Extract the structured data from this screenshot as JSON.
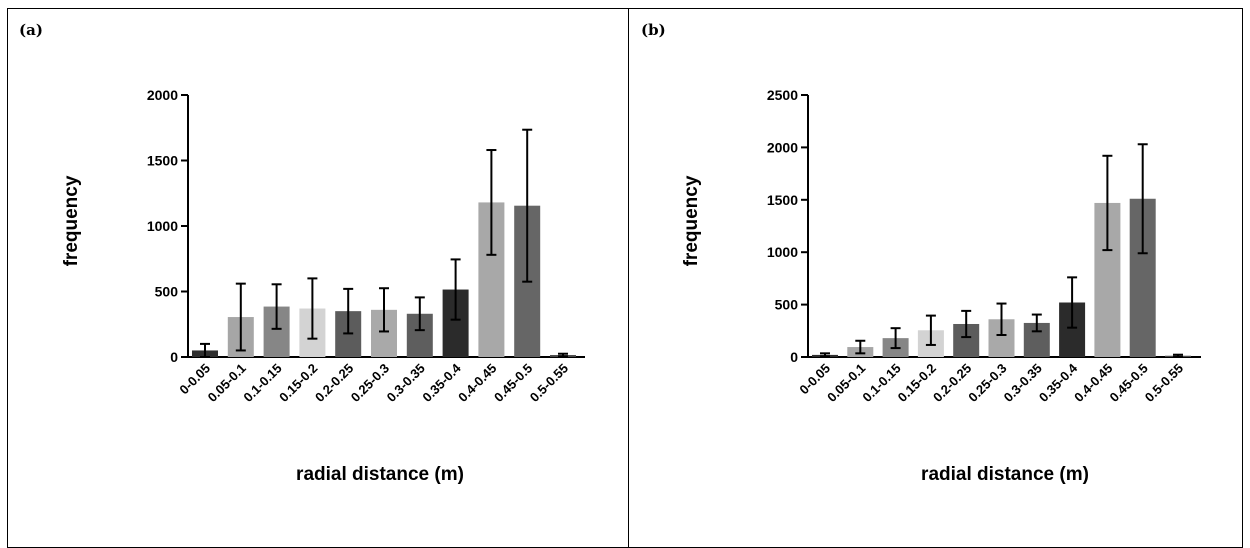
{
  "chart_data": [
    {
      "type": "bar",
      "panel_label": "(a)",
      "xlabel": "radial distance (m)",
      "ylabel": "frequency",
      "ylim": [
        0,
        2000
      ],
      "yticks": [
        "0",
        "500",
        "1000",
        "1500",
        "2000"
      ],
      "categories": [
        "0-0.05",
        "0.05-0.1",
        "0.1-0.15",
        "0.15-0.2",
        "0.2-0.25",
        "0.25-0.3",
        "0.3-0.35",
        "0.35-0.4",
        "0.4-0.45",
        "0.45-0.5",
        "0.5-0.55"
      ],
      "values": [
        50,
        305,
        385,
        370,
        350,
        360,
        330,
        515,
        1180,
        1155,
        15
      ],
      "error": [
        50,
        255,
        170,
        230,
        170,
        165,
        125,
        230,
        400,
        580,
        10
      ],
      "bar_colors": [
        "#2f2f2f",
        "#a6a6a6",
        "#868686",
        "#d3d3d3",
        "#5c5c5c",
        "#a9a9a9",
        "#5e5e5e",
        "#2b2b2b",
        "#a8a8a8",
        "#666666",
        "#4a4a4a"
      ]
    },
    {
      "type": "bar",
      "panel_label": "(b)",
      "xlabel": "radial distance (m)",
      "ylabel": "frequency",
      "ylim": [
        0,
        2500
      ],
      "yticks": [
        "0",
        "500",
        "1000",
        "1500",
        "2000",
        "2500"
      ],
      "categories": [
        "0-0.05",
        "0.05-0.1",
        "0.1-0.15",
        "0.15-0.2",
        "0.2-0.25",
        "0.25-0.3",
        "0.3-0.35",
        "0.35-0.4",
        "0.4-0.45",
        "0.45-0.5",
        "0.5-0.55"
      ],
      "values": [
        20,
        95,
        180,
        255,
        315,
        360,
        325,
        520,
        1470,
        1510,
        12
      ],
      "error": [
        15,
        60,
        95,
        140,
        125,
        150,
        80,
        240,
        450,
        520,
        10
      ],
      "bar_colors": [
        "#2f2f2f",
        "#a6a6a6",
        "#868686",
        "#d3d3d3",
        "#5c5c5c",
        "#a9a9a9",
        "#5e5e5e",
        "#2b2b2b",
        "#a8a8a8",
        "#666666",
        "#4a4a4a"
      ]
    }
  ]
}
